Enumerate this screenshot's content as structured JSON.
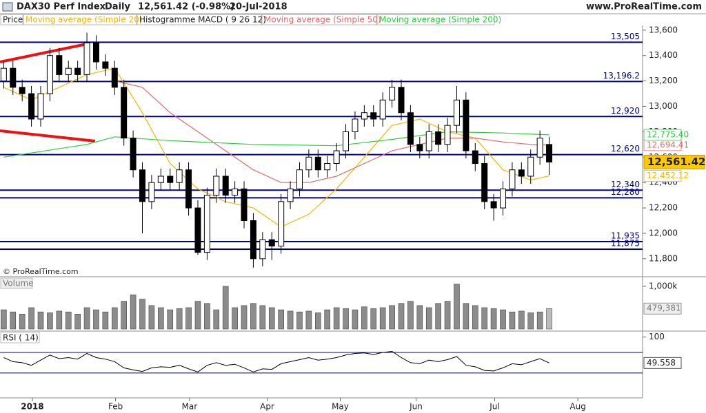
{
  "header": {
    "title": "DAX30 Perf Index",
    "period": "Daily",
    "last": "12,561.42 (-0.98%)",
    "date": "20-Jul-2018",
    "site": "www.ProRealTime.com",
    "copyright": "© ProRealTime.com"
  },
  "chart_data": [
    {
      "type": "candlestick",
      "name": "Price",
      "indicators": [
        "Histogramme MACD ( 9 26 12)"
      ],
      "up_color": "#ffffff",
      "down_color": "#000000",
      "xlim": [
        -0.4,
        69.1
      ],
      "xticks": [
        {
          "value": 3.1,
          "label": "2018"
        },
        {
          "value": 12.1,
          "label": "Feb"
        },
        {
          "value": 20.1,
          "label": "Mar"
        },
        {
          "value": 28.5,
          "label": "Apr"
        },
        {
          "value": 36.4,
          "label": "May"
        },
        {
          "value": 44.6,
          "label": "Jun"
        },
        {
          "value": 53.1,
          "label": "Jul"
        },
        {
          "value": 62.1,
          "label": "Aug"
        }
      ],
      "ylim": [
        11680,
        13740
      ],
      "yticks": [
        {
          "value": 11800,
          "label": "11,800"
        },
        {
          "value": 12000,
          "label": "12,000"
        },
        {
          "value": 12200,
          "label": "12,200"
        },
        {
          "value": 12400,
          "label": "12,400"
        },
        {
          "value": 12600,
          "label": "12,600"
        },
        {
          "value": 12800,
          "label": "12,800"
        },
        {
          "value": 13000,
          "label": "13,000"
        },
        {
          "value": 13200,
          "label": "13,200"
        },
        {
          "value": 13400,
          "label": "13,400"
        },
        {
          "value": 13600,
          "label": "13,600"
        }
      ],
      "open": [
        13200,
        13300,
        13150,
        13100,
        12900,
        13100,
        13400,
        13250,
        13300,
        13250,
        13500,
        13350,
        13300,
        13150,
        12750,
        12500,
        12250,
        12400,
        12450,
        12400,
        12500,
        12200,
        11850,
        12300,
        12450,
        12300,
        12350,
        12100,
        11800,
        11950,
        11900,
        12250,
        12350,
        12500,
        12600,
        12500,
        12550,
        12650,
        12800,
        12900,
        12950,
        12900,
        13050,
        13150,
        12950,
        12700,
        12650,
        12800,
        12700,
        12850,
        13050,
        12650,
        12550,
        12250,
        12200,
        12350,
        12500,
        12450,
        12600,
        12700
      ],
      "high": [
        13360,
        13360,
        13210,
        13160,
        13160,
        13460,
        13460,
        13360,
        13360,
        13580,
        13560,
        13410,
        13360,
        13210,
        12810,
        12560,
        12460,
        12510,
        12510,
        12560,
        12560,
        12260,
        12360,
        12510,
        12510,
        12410,
        12410,
        12160,
        12010,
        12010,
        12310,
        12410,
        12560,
        12660,
        12660,
        12610,
        12710,
        12860,
        12960,
        13010,
        13010,
        13110,
        13210,
        13210,
        13010,
        12760,
        12860,
        12860,
        12910,
        13160,
        13110,
        12710,
        12610,
        12310,
        12410,
        12560,
        12560,
        12660,
        12810,
        12760
      ],
      "low": [
        13140,
        13090,
        13040,
        12840,
        12840,
        13040,
        13190,
        13190,
        13190,
        13190,
        13290,
        13240,
        13090,
        12690,
        12440,
        12000,
        12190,
        12340,
        12340,
        12340,
        12140,
        11830,
        11790,
        12240,
        12240,
        12240,
        12040,
        11730,
        11740,
        11790,
        11840,
        12190,
        12290,
        12440,
        12440,
        12440,
        12490,
        12590,
        12740,
        12840,
        12840,
        12840,
        12990,
        12890,
        12640,
        12590,
        12590,
        12640,
        12640,
        12790,
        12590,
        12490,
        12190,
        12100,
        12140,
        12290,
        12390,
        12390,
        12540,
        12460
      ],
      "close": [
        13300,
        13150,
        13100,
        12900,
        13100,
        13400,
        13250,
        13300,
        13250,
        13500,
        13350,
        13300,
        13150,
        12750,
        12500,
        12250,
        12400,
        12450,
        12400,
        12500,
        12200,
        11850,
        12300,
        12450,
        12300,
        12350,
        12100,
        11800,
        11950,
        11900,
        12250,
        12350,
        12500,
        12600,
        12500,
        12550,
        12650,
        12800,
        12900,
        12950,
        12900,
        13050,
        13150,
        12950,
        12700,
        12650,
        12800,
        12700,
        12850,
        13050,
        12650,
        12550,
        12250,
        12200,
        12350,
        12500,
        12450,
        12600,
        12750,
        12561.42
      ],
      "last_label": "12,561.42",
      "series": [
        {
          "name": "Moving average (Simple 20)",
          "color": "#f2b705",
          "x": [
            0,
            3,
            6,
            9,
            12,
            15,
            18,
            21,
            24,
            27,
            30,
            33,
            36,
            39,
            42,
            45,
            48,
            51,
            54,
            57,
            59
          ],
          "values": [
            13150,
            13050,
            13150,
            13250,
            13300,
            12950,
            12550,
            12350,
            12250,
            12200,
            12050,
            12150,
            12350,
            12600,
            12850,
            12900,
            12800,
            12750,
            12500,
            12420,
            12452.12
          ],
          "last_label": "12,452.12"
        },
        {
          "name": "Moving average (Simple 50)",
          "color": "#e06a6a",
          "x": [
            12,
            15,
            18,
            21,
            24,
            27,
            30,
            33,
            36,
            39,
            42,
            45,
            48,
            51,
            54,
            57,
            59
          ],
          "values": [
            13200,
            13150,
            12950,
            12800,
            12650,
            12500,
            12400,
            12400,
            12450,
            12550,
            12650,
            12700,
            12750,
            12750,
            12720,
            12700,
            12694.41
          ],
          "last_label": "12,694.41"
        },
        {
          "name": "Moving average (Simple 200)",
          "color": "#2ecc40",
          "x": [
            0,
            9,
            12,
            18,
            27,
            36,
            42,
            48,
            54,
            59
          ],
          "values": [
            12600,
            12700,
            12760,
            12730,
            12700,
            12690,
            12740,
            12800,
            12790,
            12775.4
          ],
          "last_label": "12,775.40"
        }
      ],
      "level_color": "#000080",
      "levels": [
        {
          "value": 13505,
          "label": "13,505"
        },
        {
          "value": 13196.2,
          "label": "13,196.2"
        },
        {
          "value": 12920,
          "label": "12,920"
        },
        {
          "value": 12620,
          "label": "12,620"
        },
        {
          "value": 12340,
          "label": "12,340"
        },
        {
          "value": 12280,
          "label": "12,280"
        },
        {
          "value": 11935,
          "label": "11,935"
        },
        {
          "value": 11875,
          "label": "11,875"
        }
      ]
    },
    {
      "type": "bar",
      "title": "Volume",
      "color": "#8c8c8c",
      "ylim": [
        0,
        1160000
      ],
      "yticks": [
        {
          "value": 1000000,
          "label": "1,000k"
        }
      ],
      "values": [
        450000,
        400000,
        350000,
        500000,
        400000,
        380000,
        420000,
        400000,
        350000,
        500000,
        450000,
        400000,
        500000,
        650000,
        800000,
        700000,
        550000,
        500000,
        450000,
        480000,
        500000,
        650000,
        600000,
        450000,
        1000000,
        500000,
        550000,
        600000,
        550000,
        500000,
        450000,
        420000,
        400000,
        420000,
        380000,
        450000,
        500000,
        480000,
        450000,
        520000,
        480000,
        500000,
        550000,
        600000,
        650000,
        550000,
        500000,
        600000,
        650000,
        1050000,
        600000,
        550000,
        500000,
        480000,
        450000,
        400000,
        420000,
        380000,
        400000,
        479381
      ],
      "last_label": "479,381"
    },
    {
      "type": "line",
      "title": "RSI ( 14)",
      "color": "#000000",
      "level_color": "#000080",
      "ylim": [
        -18.5,
        107.6
      ],
      "yticks": [
        100
      ],
      "levels": [
        70,
        30
      ],
      "values": [
        60,
        52,
        50,
        45,
        55,
        65,
        58,
        60,
        57,
        68,
        60,
        57,
        52,
        40,
        36,
        33,
        40,
        42,
        41,
        45,
        38,
        32,
        45,
        50,
        45,
        47,
        40,
        32,
        38,
        37,
        48,
        52,
        56,
        60,
        55,
        57,
        60,
        65,
        68,
        69,
        66,
        70,
        72,
        60,
        50,
        48,
        55,
        52,
        56,
        62,
        45,
        42,
        35,
        34,
        40,
        48,
        46,
        52,
        58,
        49.558
      ],
      "last_label": "49.558"
    }
  ]
}
